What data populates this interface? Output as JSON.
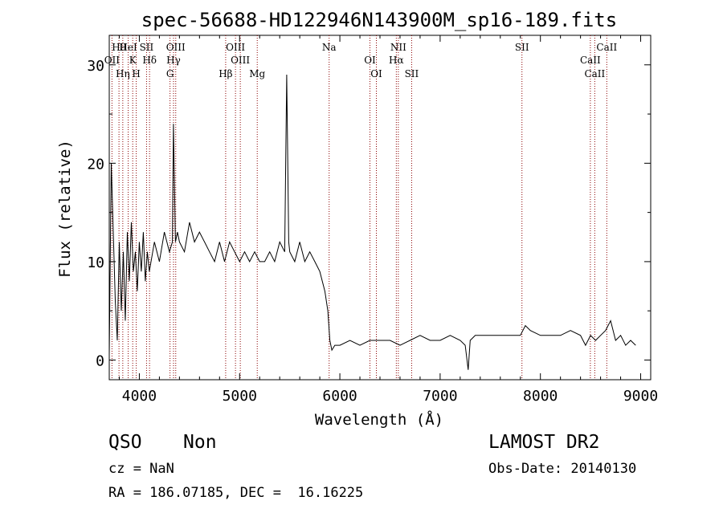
{
  "chart_data": {
    "type": "line",
    "title": "spec-56688-HD122946N143900M_sp16-189.fits",
    "xlabel": "Wavelength (Å)",
    "ylabel": "Flux (relative)",
    "xlim": [
      3700,
      9100
    ],
    "ylim": [
      -2,
      33
    ],
    "xticks": [
      4000,
      5000,
      6000,
      7000,
      8000,
      9000
    ],
    "yticks": [
      0,
      10,
      20,
      30
    ],
    "grid": false,
    "line_color": "#000000",
    "marker_color": "#8b0000",
    "series": [
      {
        "x": [
          3700,
          3720,
          3740,
          3760,
          3780,
          3800,
          3820,
          3840,
          3860,
          3880,
          3900,
          3920,
          3940,
          3960,
          3980,
          4000,
          4020,
          4040,
          4060,
          4080,
          4100,
          4150,
          4200,
          4250,
          4300,
          4330,
          4340,
          4360,
          4380,
          4400,
          4450,
          4500,
          4550,
          4600,
          4650,
          4700,
          4750,
          4800,
          4850,
          4900,
          4950,
          5000,
          5050,
          5100,
          5150,
          5200,
          5250,
          5300,
          5350,
          5400,
          5450,
          5470,
          5490,
          5500,
          5550,
          5600,
          5650,
          5700,
          5750,
          5800,
          5850,
          5880,
          5900,
          5920,
          5950,
          6000,
          6100,
          6200,
          6300,
          6400,
          6500,
          6600,
          6700,
          6800,
          6900,
          7000,
          7100,
          7200,
          7250,
          7280,
          7300,
          7350,
          7400,
          7500,
          7600,
          7700,
          7800,
          7850,
          7900,
          8000,
          8100,
          8200,
          8300,
          8400,
          8450,
          8500,
          8550,
          8600,
          8650,
          8700,
          8750,
          8800,
          8850,
          8900,
          8950
        ],
        "y": [
          0.5,
          20,
          13,
          6,
          2,
          12,
          5,
          11,
          4,
          13,
          8,
          14,
          9,
          11,
          7,
          12,
          9,
          13,
          8,
          11,
          9,
          12,
          10,
          13,
          11,
          12,
          24,
          12,
          13,
          12,
          11,
          14,
          12,
          13,
          12,
          11,
          10,
          12,
          10,
          12,
          11,
          10,
          11,
          10,
          11,
          10,
          10,
          11,
          10,
          12,
          11,
          29,
          12,
          11,
          10,
          12,
          10,
          11,
          10,
          9,
          7,
          5,
          2,
          1,
          1.5,
          1.5,
          2,
          1.5,
          2,
          2,
          2,
          1.5,
          2,
          2.5,
          2,
          2,
          2.5,
          2,
          1.5,
          -1,
          2,
          2.5,
          2.5,
          2.5,
          2.5,
          2.5,
          2.5,
          3.5,
          3,
          2.5,
          2.5,
          2.5,
          3,
          2.5,
          1.5,
          2.5,
          2,
          2.5,
          3,
          4,
          2,
          2.5,
          1.5,
          2,
          1.5
        ]
      }
    ],
    "spectral_lines": [
      {
        "label": "Hθ",
        "wavelength": 3797
      },
      {
        "label": "OII",
        "wavelength": 3727
      },
      {
        "label": "Hη",
        "wavelength": 3835
      },
      {
        "label": "HeI",
        "wavelength": 3889
      },
      {
        "label": "K",
        "wavelength": 3934
      },
      {
        "label": "H",
        "wavelength": 3969
      },
      {
        "label": "SII",
        "wavelength": 4072
      },
      {
        "label": "Hδ",
        "wavelength": 4102
      },
      {
        "label": "G",
        "wavelength": 4306
      },
      {
        "label": "OIII",
        "wavelength": 4363
      },
      {
        "label": "Hγ",
        "wavelength": 4341
      },
      {
        "label": "Hβ",
        "wavelength": 4861
      },
      {
        "label": "OIII",
        "wavelength": 4959
      },
      {
        "label": "OIII",
        "wavelength": 5007
      },
      {
        "label": "Mg",
        "wavelength": 5176
      },
      {
        "label": "Na",
        "wavelength": 5893
      },
      {
        "label": "OI",
        "wavelength": 6300
      },
      {
        "label": "OI",
        "wavelength": 6364
      },
      {
        "label": "NII",
        "wavelength": 6583
      },
      {
        "label": "Hα",
        "wavelength": 6563
      },
      {
        "label": "SII",
        "wavelength": 6716
      },
      {
        "label": "SII",
        "wavelength": 7816
      },
      {
        "label": "CaII",
        "wavelength": 8498
      },
      {
        "label": "CaII",
        "wavelength": 8542
      },
      {
        "label": "CaII",
        "wavelength": 8662
      }
    ]
  },
  "info": {
    "class": "QSO",
    "subclass": "Non",
    "survey": "LAMOST DR2",
    "cz": "cz = NaN",
    "obs_date": "Obs-Date: 20140130",
    "radec": "RA = 186.07185, DEC =  16.16225"
  }
}
